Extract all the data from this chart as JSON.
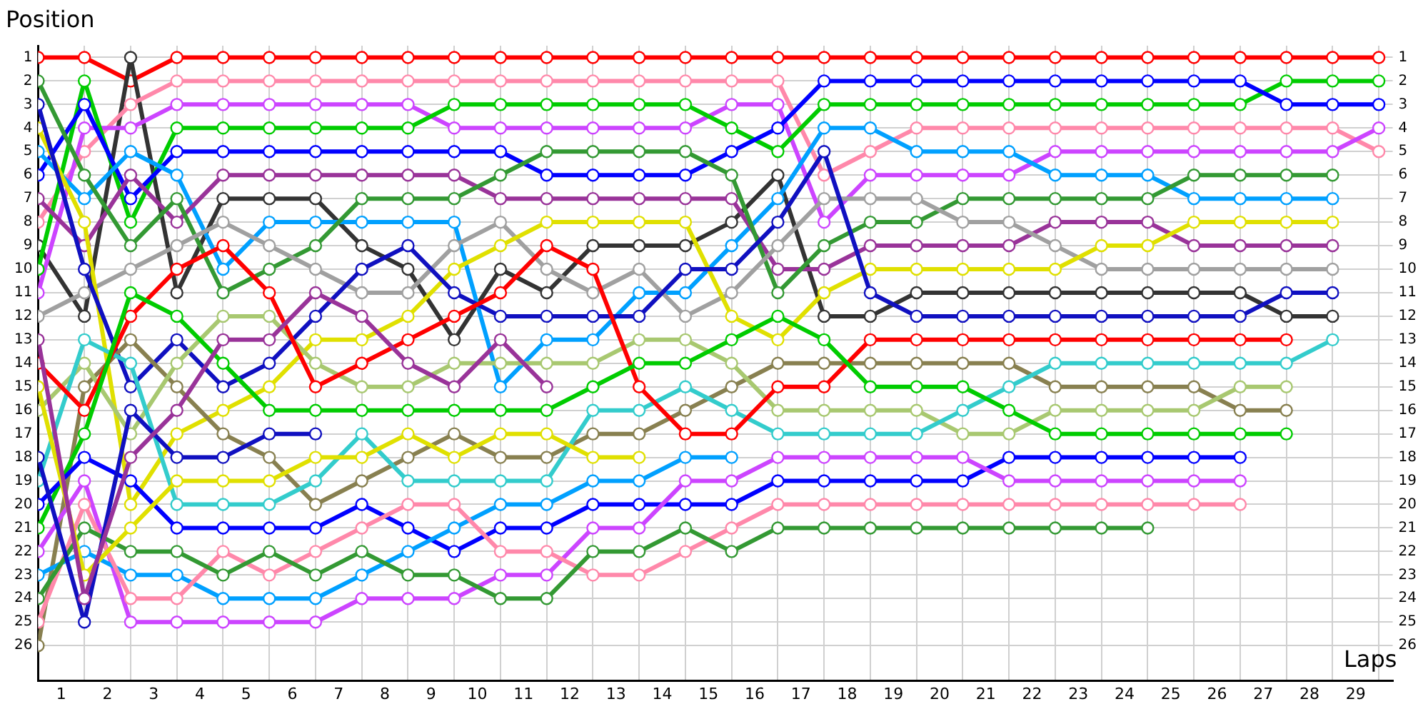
{
  "chart_data": {
    "type": "line",
    "xlabel": "Laps",
    "ylabel": "Position",
    "x": [
      0,
      1,
      2,
      3,
      4,
      5,
      6,
      7,
      8,
      9,
      10,
      11,
      12,
      13,
      14,
      15,
      16,
      17,
      18,
      19,
      20,
      21,
      22,
      23,
      24,
      25,
      26,
      27,
      28,
      29
    ],
    "xlim": [
      0,
      29.3
    ],
    "xticks": [
      {
        "value": 0,
        "label": null
      },
      {
        "value": 0.5,
        "label": "1"
      },
      {
        "value": 1,
        "label": null
      },
      {
        "value": 1.5,
        "label": "2"
      },
      {
        "value": 2,
        "label": null
      },
      {
        "value": 2.5,
        "label": "3"
      },
      {
        "value": 3,
        "label": null
      },
      {
        "value": 3.5,
        "label": "4"
      },
      {
        "value": 4,
        "label": null
      },
      {
        "value": 4.5,
        "label": "5"
      },
      {
        "value": 5,
        "label": null
      },
      {
        "value": 5.5,
        "label": "6"
      },
      {
        "value": 6,
        "label": null
      },
      {
        "value": 6.5,
        "label": "7"
      },
      {
        "value": 7,
        "label": null
      },
      {
        "value": 7.5,
        "label": "8"
      },
      {
        "value": 8,
        "label": null
      },
      {
        "value": 8.5,
        "label": "9"
      },
      {
        "value": 9,
        "label": null
      },
      {
        "value": 9.5,
        "label": "10"
      },
      {
        "value": 10,
        "label": null
      },
      {
        "value": 10.5,
        "label": "11"
      },
      {
        "value": 11,
        "label": null
      },
      {
        "value": 11.5,
        "label": "12"
      },
      {
        "value": 12,
        "label": null
      },
      {
        "value": 12.5,
        "label": "13"
      },
      {
        "value": 13,
        "label": null
      },
      {
        "value": 13.5,
        "label": "14"
      },
      {
        "value": 14,
        "label": null
      },
      {
        "value": 14.5,
        "label": "15"
      },
      {
        "value": 15,
        "label": null
      },
      {
        "value": 15.5,
        "label": "16"
      },
      {
        "value": 16,
        "label": null
      },
      {
        "value": 16.5,
        "label": "17"
      },
      {
        "value": 17,
        "label": null
      },
      {
        "value": 17.5,
        "label": "18"
      },
      {
        "value": 18,
        "label": null
      },
      {
        "value": 18.5,
        "label": "19"
      },
      {
        "value": 19,
        "label": null
      },
      {
        "value": 19.5,
        "label": "20"
      },
      {
        "value": 20,
        "label": null
      },
      {
        "value": 20.5,
        "label": "21"
      },
      {
        "value": 21,
        "label": null
      },
      {
        "value": 21.5,
        "label": "22"
      },
      {
        "value": 22,
        "label": null
      },
      {
        "value": 22.5,
        "label": "23"
      },
      {
        "value": 23,
        "label": null
      },
      {
        "value": 23.5,
        "label": "24"
      },
      {
        "value": 24,
        "label": null
      },
      {
        "value": 24.5,
        "label": "25"
      },
      {
        "value": 25,
        "label": null
      },
      {
        "value": 25.5,
        "label": "26"
      },
      {
        "value": 26,
        "label": null
      },
      {
        "value": 26.5,
        "label": "27"
      },
      {
        "value": 27,
        "label": null
      },
      {
        "value": 27.5,
        "label": "28"
      },
      {
        "value": 28,
        "label": null
      },
      {
        "value": 28.5,
        "label": "29"
      },
      {
        "value": 29,
        "label": null
      }
    ],
    "ylim": [
      27.5,
      0.5
    ],
    "yticks": [
      1,
      2,
      3,
      4,
      5,
      6,
      7,
      8,
      9,
      10,
      11,
      12,
      13,
      14,
      15,
      16,
      17,
      18,
      19,
      20,
      21,
      22,
      23,
      24,
      25,
      26
    ],
    "y2lim": [
      27.5,
      0.5
    ],
    "y2ticks": [
      1,
      2,
      3,
      4,
      5,
      6,
      7,
      8,
      9,
      10,
      11,
      12,
      13,
      14,
      15,
      16,
      17,
      18,
      19,
      20,
      21,
      22,
      23,
      24,
      25,
      26
    ],
    "grid": true,
    "marker": "circle",
    "line_style": "solid",
    "series": [
      {
        "color": "#ff0000",
        "values": [
          1,
          1,
          2,
          1,
          1,
          1,
          1,
          1,
          1,
          1,
          1,
          1,
          1,
          1,
          1,
          1,
          1,
          1,
          1,
          1,
          1,
          1,
          1,
          1,
          1,
          1,
          1,
          1,
          1,
          1
        ]
      },
      {
        "color": "#333333",
        "values": [
          9,
          12,
          1,
          11,
          7,
          7,
          7,
          9,
          10,
          13,
          10,
          11,
          9,
          9,
          9,
          8,
          6,
          12,
          12,
          11,
          11,
          11,
          11,
          11,
          11,
          11,
          11,
          12,
          12,
          null
        ]
      },
      {
        "color": "#ff88aa",
        "values": [
          8,
          5,
          3,
          2,
          2,
          2,
          2,
          2,
          2,
          2,
          2,
          2,
          2,
          2,
          2,
          2,
          2,
          6,
          5,
          4,
          4,
          4,
          4,
          4,
          4,
          4,
          4,
          4,
          4,
          5
        ]
      },
      {
        "color": "#cc44ff",
        "values": [
          11,
          4,
          4,
          3,
          3,
          3,
          3,
          3,
          3,
          4,
          4,
          4,
          4,
          4,
          4,
          3,
          3,
          8,
          6,
          6,
          6,
          6,
          5,
          5,
          5,
          5,
          5,
          5,
          5,
          4
        ]
      },
      {
        "color": "#00cc00",
        "values": [
          10,
          2,
          8,
          4,
          4,
          4,
          4,
          4,
          4,
          3,
          3,
          3,
          3,
          3,
          3,
          4,
          5,
          3,
          3,
          3,
          3,
          3,
          3,
          3,
          3,
          3,
          3,
          2,
          2,
          2
        ]
      },
      {
        "color": "#0000ff",
        "values": [
          6,
          3,
          7,
          5,
          5,
          5,
          5,
          5,
          5,
          5,
          5,
          6,
          6,
          6,
          6,
          5,
          4,
          2,
          2,
          2,
          2,
          2,
          2,
          2,
          2,
          2,
          2,
          3,
          3,
          3
        ]
      },
      {
        "color": "#00a0ff",
        "values": [
          5,
          7,
          5,
          6,
          10,
          8,
          8,
          8,
          8,
          8,
          15,
          13,
          13,
          11,
          11,
          9,
          7,
          4,
          4,
          5,
          5,
          5,
          6,
          6,
          6,
          7,
          7,
          7,
          7,
          null
        ]
      },
      {
        "color": "#993399",
        "values": [
          7,
          9,
          6,
          8,
          6,
          6,
          6,
          6,
          6,
          6,
          7,
          7,
          7,
          7,
          7,
          7,
          10,
          10,
          9,
          9,
          9,
          9,
          8,
          8,
          8,
          9,
          9,
          9,
          9,
          null
        ]
      },
      {
        "color": "#339933",
        "values": [
          2,
          6,
          9,
          7,
          11,
          10,
          9,
          7,
          7,
          7,
          6,
          5,
          5,
          5,
          5,
          6,
          11,
          9,
          8,
          8,
          7,
          7,
          7,
          7,
          7,
          6,
          6,
          6,
          6,
          null
        ]
      },
      {
        "color": "#a0a0a0",
        "values": [
          12,
          11,
          10,
          9,
          8,
          9,
          10,
          11,
          11,
          9,
          8,
          10,
          11,
          10,
          12,
          11,
          9,
          7,
          7,
          7,
          8,
          8,
          9,
          10,
          10,
          10,
          10,
          10,
          10,
          null
        ]
      },
      {
        "color": "#e0e000",
        "values": [
          4,
          8,
          20,
          17,
          16,
          15,
          13,
          13,
          12,
          10,
          9,
          8,
          8,
          8,
          8,
          12,
          13,
          11,
          10,
          10,
          10,
          10,
          10,
          9,
          9,
          8,
          8,
          8,
          8,
          null
        ]
      },
      {
        "color": "#1010c0",
        "values": [
          3,
          10,
          15,
          13,
          15,
          14,
          12,
          10,
          9,
          11,
          12,
          12,
          12,
          12,
          10,
          10,
          8,
          5,
          11,
          12,
          12,
          12,
          12,
          12,
          12,
          12,
          12,
          11,
          11,
          null
        ]
      },
      {
        "color": "#888050",
        "values": [
          26,
          15,
          13,
          15,
          17,
          18,
          20,
          19,
          18,
          17,
          18,
          18,
          17,
          17,
          16,
          15,
          14,
          14,
          14,
          14,
          14,
          14,
          15,
          15,
          15,
          15,
          16,
          16,
          null,
          null
        ]
      },
      {
        "color": "#a8c870",
        "values": [
          16,
          14,
          17,
          14,
          12,
          12,
          14,
          15,
          15,
          14,
          14,
          14,
          14,
          13,
          13,
          14,
          16,
          16,
          16,
          16,
          17,
          17,
          16,
          16,
          16,
          16,
          15,
          15,
          null,
          null
        ]
      },
      {
        "color": "#33cccc",
        "values": [
          19,
          13,
          14,
          20,
          20,
          20,
          19,
          17,
          19,
          19,
          19,
          19,
          16,
          16,
          15,
          16,
          17,
          17,
          17,
          17,
          16,
          15,
          14,
          14,
          14,
          14,
          14,
          14,
          13,
          null
        ]
      },
      {
        "color": "#ff0000",
        "values": [
          14,
          16,
          12,
          10,
          9,
          11,
          15,
          14,
          13,
          12,
          11,
          9,
          10,
          15,
          17,
          17,
          15,
          15,
          13,
          13,
          13,
          13,
          13,
          13,
          13,
          13,
          13,
          13,
          null,
          null
        ]
      },
      {
        "color": "#00cc00",
        "values": [
          21,
          17,
          11,
          12,
          14,
          16,
          16,
          16,
          16,
          16,
          16,
          16,
          15,
          14,
          14,
          13,
          12,
          13,
          15,
          15,
          15,
          16,
          17,
          17,
          17,
          17,
          17,
          17,
          null,
          null
        ]
      },
      {
        "color": "#0000ff",
        "values": [
          20,
          18,
          19,
          21,
          21,
          21,
          21,
          20,
          21,
          22,
          21,
          21,
          20,
          20,
          20,
          20,
          19,
          19,
          19,
          19,
          19,
          18,
          18,
          18,
          18,
          18,
          18,
          null,
          null,
          null
        ]
      },
      {
        "color": "#cc44ff",
        "values": [
          22,
          19,
          25,
          25,
          25,
          25,
          25,
          24,
          24,
          24,
          23,
          23,
          21,
          21,
          19,
          19,
          18,
          18,
          18,
          18,
          18,
          19,
          19,
          19,
          19,
          19,
          19,
          null,
          null,
          null
        ]
      },
      {
        "color": "#00a0ff",
        "values": [
          23,
          22,
          23,
          23,
          24,
          24,
          24,
          23,
          22,
          21,
          20,
          20,
          19,
          19,
          18,
          18,
          null,
          null,
          null,
          null,
          null,
          null,
          null,
          null,
          null,
          null,
          null,
          null,
          null,
          null
        ]
      },
      {
        "color": "#ff88aa",
        "values": [
          25,
          20,
          24,
          24,
          22,
          23,
          22,
          21,
          20,
          20,
          22,
          22,
          23,
          23,
          22,
          21,
          20,
          20,
          20,
          20,
          20,
          20,
          20,
          20,
          20,
          20,
          20,
          null,
          null,
          null
        ]
      },
      {
        "color": "#339933",
        "values": [
          24,
          21,
          22,
          22,
          23,
          22,
          23,
          22,
          23,
          23,
          24,
          24,
          22,
          22,
          21,
          22,
          21,
          21,
          21,
          21,
          21,
          21,
          21,
          21,
          21,
          null,
          null,
          null,
          null,
          null
        ]
      },
      {
        "color": "#1010c0",
        "values": [
          18,
          25,
          16,
          18,
          18,
          17,
          17,
          null,
          null,
          null,
          null,
          null,
          null,
          null,
          null,
          null,
          null,
          null,
          null,
          null,
          null,
          null,
          null,
          null,
          null,
          null,
          null,
          null,
          null,
          null
        ]
      },
      {
        "color": "#e0e000",
        "values": [
          15,
          23,
          21,
          19,
          19,
          19,
          18,
          18,
          17,
          18,
          17,
          17,
          18,
          18,
          null,
          null,
          null,
          null,
          null,
          null,
          null,
          null,
          null,
          null,
          null,
          null,
          null,
          null,
          null,
          null
        ]
      },
      {
        "color": "#993399",
        "values": [
          13,
          24,
          18,
          16,
          13,
          13,
          11,
          12,
          14,
          15,
          13,
          15,
          null,
          null,
          null,
          null,
          null,
          null,
          null,
          null,
          null,
          null,
          null,
          null,
          null,
          null,
          null,
          null,
          null,
          null
        ]
      }
    ]
  }
}
